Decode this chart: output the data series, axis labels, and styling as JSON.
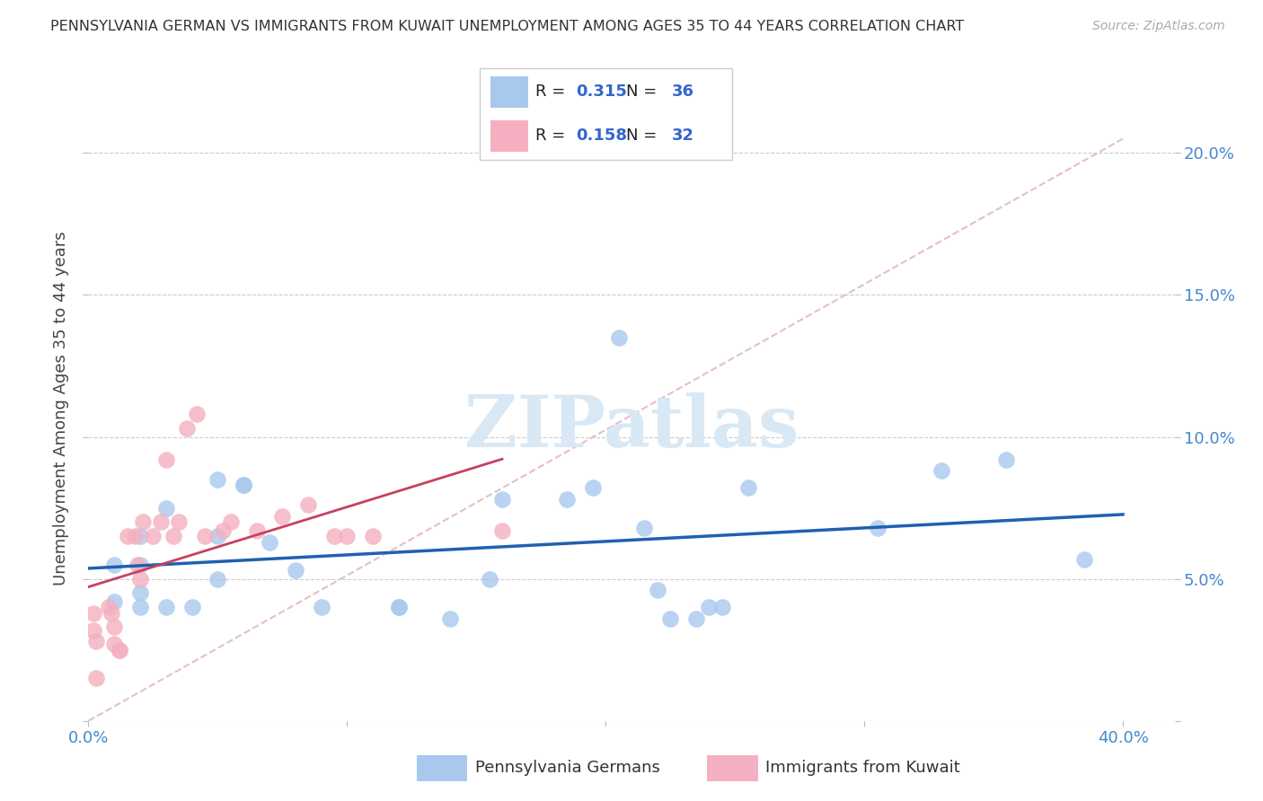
{
  "title": "PENNSYLVANIA GERMAN VS IMMIGRANTS FROM KUWAIT UNEMPLOYMENT AMONG AGES 35 TO 44 YEARS CORRELATION CHART",
  "source": "Source: ZipAtlas.com",
  "ylabel": "Unemployment Among Ages 35 to 44 years",
  "xlim": [
    0.0,
    0.42
  ],
  "ylim": [
    0.0,
    0.22
  ],
  "yticks": [
    0.0,
    0.05,
    0.1,
    0.15,
    0.2
  ],
  "ytick_labels": [
    "",
    "5.0%",
    "10.0%",
    "15.0%",
    "20.0%"
  ],
  "xticks": [
    0.0,
    0.1,
    0.2,
    0.3,
    0.4
  ],
  "xtick_labels": [
    "0.0%",
    "",
    "",
    "",
    "40.0%"
  ],
  "blue_R": "0.315",
  "blue_N": "36",
  "pink_R": "0.158",
  "pink_N": "32",
  "blue_color": "#A8C8EE",
  "pink_color": "#F4B0C0",
  "blue_line_color": "#2060B0",
  "pink_line_color": "#C84060",
  "dashed_line_color": "#E0B8C4",
  "text_color_label": "#222222",
  "text_color_value": "#3366CC",
  "legend_label_blue": "Pennsylvania Germans",
  "legend_label_pink": "Immigrants from Kuwait",
  "watermark": "ZIPatlas",
  "blue_x": [
    0.01,
    0.01,
    0.02,
    0.02,
    0.02,
    0.02,
    0.03,
    0.03,
    0.04,
    0.05,
    0.05,
    0.05,
    0.06,
    0.06,
    0.07,
    0.08,
    0.09,
    0.12,
    0.12,
    0.14,
    0.155,
    0.16,
    0.185,
    0.195,
    0.205,
    0.215,
    0.22,
    0.225,
    0.235,
    0.24,
    0.245,
    0.255,
    0.305,
    0.33,
    0.355,
    0.385
  ],
  "blue_y": [
    0.042,
    0.055,
    0.04,
    0.045,
    0.055,
    0.065,
    0.04,
    0.075,
    0.04,
    0.05,
    0.065,
    0.085,
    0.083,
    0.083,
    0.063,
    0.053,
    0.04,
    0.04,
    0.04,
    0.036,
    0.05,
    0.078,
    0.078,
    0.082,
    0.135,
    0.068,
    0.046,
    0.036,
    0.036,
    0.04,
    0.04,
    0.082,
    0.068,
    0.088,
    0.092,
    0.057
  ],
  "pink_x": [
    0.002,
    0.002,
    0.003,
    0.003,
    0.008,
    0.009,
    0.01,
    0.01,
    0.012,
    0.012,
    0.015,
    0.018,
    0.019,
    0.02,
    0.021,
    0.025,
    0.028,
    0.03,
    0.033,
    0.035,
    0.038,
    0.042,
    0.045,
    0.052,
    0.055,
    0.065,
    0.075,
    0.085,
    0.095,
    0.1,
    0.11,
    0.16
  ],
  "pink_y": [
    0.038,
    0.032,
    0.028,
    0.015,
    0.04,
    0.038,
    0.033,
    0.027,
    0.025,
    0.025,
    0.065,
    0.065,
    0.055,
    0.05,
    0.07,
    0.065,
    0.07,
    0.092,
    0.065,
    0.07,
    0.103,
    0.108,
    0.065,
    0.067,
    0.07,
    0.067,
    0.072,
    0.076,
    0.065,
    0.065,
    0.065,
    0.067
  ]
}
